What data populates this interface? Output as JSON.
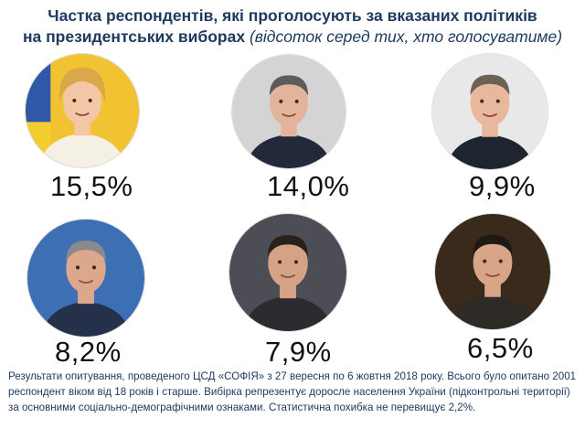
{
  "title": {
    "line1": "Частка респондентів, які проголосують за вказаних політиків",
    "line2_bold": "на президентських виборах",
    "line2_italic": "(відсоток серед тих, хто голосуватиме)"
  },
  "chart_data": {
    "type": "table",
    "categories": [
      "Candidate 1",
      "Candidate 2",
      "Candidate 3",
      "Candidate 4",
      "Candidate 5",
      "Candidate 6"
    ],
    "values": [
      15.5,
      14.0,
      9.9,
      8.2,
      7.9,
      6.5
    ],
    "value_labels": [
      "15,5%",
      "14,0%",
      "9,9%",
      "8,2%",
      "7,9%",
      "6,5%"
    ],
    "unit": "%"
  },
  "candidates": [
    {
      "label": "15,5%",
      "value": 15.5,
      "bg": "#f1c232",
      "hair": "#d9a84a",
      "suit": "#f5f0e6",
      "skin": "#f3c7a6",
      "flag": true
    },
    {
      "label": "14,0%",
      "value": 14.0,
      "bg": "#d4d4d4",
      "hair": "#5c5c5c",
      "suit": "#22293a",
      "skin": "#e3b49a",
      "flag": false
    },
    {
      "label": "9,9%",
      "value": 9.9,
      "bg": "#e8e8e8",
      "hair": "#6d6154",
      "suit": "#1e2430",
      "skin": "#e8b89c",
      "flag": false
    },
    {
      "label": "8,2%",
      "value": 8.2,
      "bg": "#3d6fb4",
      "hair": "#8a8a8a",
      "suit": "#25304a",
      "skin": "#dca88c",
      "flag": false
    },
    {
      "label": "7,9%",
      "value": 7.9,
      "bg": "#4d4d55",
      "hair": "#2a211b",
      "suit": "#2c2c30",
      "skin": "#d6a286",
      "flag": false
    },
    {
      "label": "6,5%",
      "value": 6.5,
      "bg": "#3a2a1c",
      "hair": "#1e1914",
      "suit": "#2e2a26",
      "skin": "#d9a588",
      "flag": false
    }
  ],
  "footnote": "Результати опитування, проведеного ЦСД «СОФІЯ» з 27 вересня по 6 жовтня 2018 року. Всього було опитано 2001 респондент віком від 18 років і старше. Вибірка репрезентує доросле населення України (підконтрольні території) за основними соціально-демографічними ознаками. Статистична похибка не перевищує 2,2%."
}
